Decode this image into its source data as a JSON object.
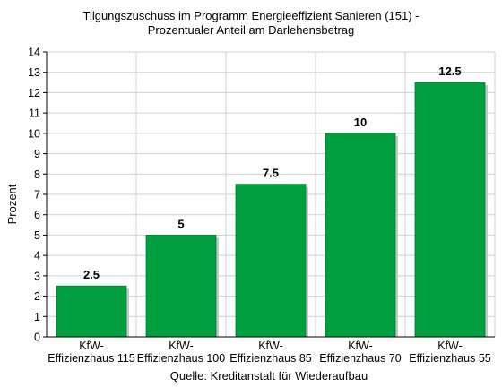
{
  "chart_data": {
    "type": "bar",
    "title_lines": [
      "Tilgungszuschuss im Programm Energieeffizient Sanieren (151) -",
      "Prozentualer Anteil am Darlehensbetrag"
    ],
    "ylabel": "Prozent",
    "xlabel": "",
    "source": "Quelle: Kreditanstalt für Wiederaufbau",
    "categories": [
      [
        "KfW-",
        "Effizienzhaus 115"
      ],
      [
        "KfW-",
        "Effizienzhaus 100"
      ],
      [
        "KfW-",
        "Effizienzhaus 85"
      ],
      [
        "KfW-",
        "Effizienzhaus 70"
      ],
      [
        "KfW-",
        "Effizienzhaus 55"
      ]
    ],
    "values": [
      2.5,
      5,
      7.5,
      10,
      12.5
    ],
    "value_labels": [
      "2.5",
      "5",
      "7.5",
      "10",
      "12.5"
    ],
    "ylim": [
      0,
      14
    ],
    "yticks": [
      "0",
      "1",
      "2",
      "3",
      "4",
      "5",
      "6",
      "7",
      "8",
      "9",
      "10",
      "11",
      "12",
      "13",
      "14"
    ],
    "grid": true,
    "bar_color": "#00a040",
    "bar_edge_color": "#007a2e"
  }
}
